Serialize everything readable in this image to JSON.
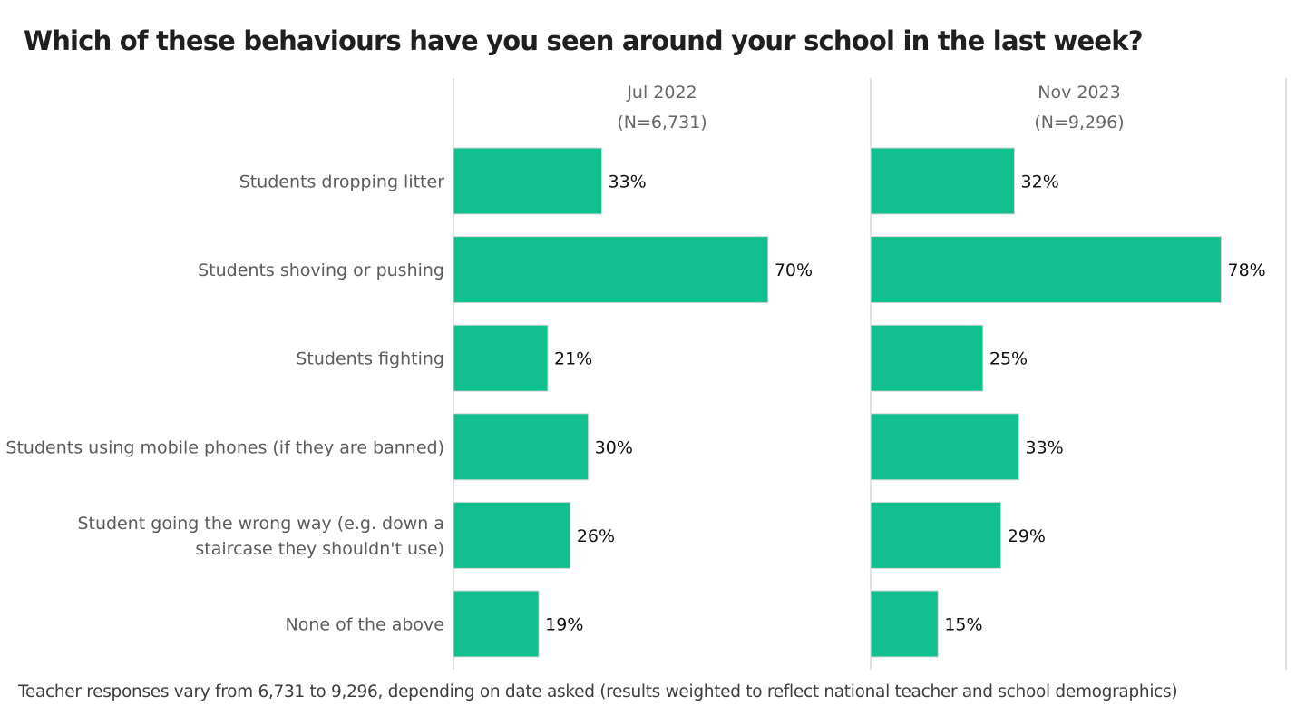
{
  "chart_data": {
    "type": "bar",
    "orientation": "horizontal",
    "title": "Which of these behaviours have you seen around your school in the last week?",
    "footnote": "Teacher responses vary from 6,731 to 9,296, depending on date asked (results weighted to reflect national teacher and school demographics)",
    "categories": [
      [
        "Students dropping litter"
      ],
      [
        "Students shoving or pushing"
      ],
      [
        "Students fighting"
      ],
      [
        "Students using mobile phones (if they are banned)"
      ],
      [
        "Student going the wrong way (e.g. down a",
        "staircase they shouldn't use)"
      ],
      [
        "None of the above"
      ]
    ],
    "series": [
      {
        "name": "Jul 2022",
        "sample": "(N=6,731)",
        "values": [
          33,
          70,
          21,
          30,
          26,
          19
        ],
        "labels": [
          "33%",
          "70%",
          "21%",
          "30%",
          "26%",
          "19%"
        ]
      },
      {
        "name": "Nov 2023",
        "sample": "(N=9,296)",
        "values": [
          32,
          78,
          25,
          33,
          29,
          15
        ],
        "labels": [
          "32%",
          "78%",
          "25%",
          "33%",
          "29%",
          "15%"
        ]
      }
    ],
    "value_unit": "%",
    "xlim": [
      0,
      100
    ],
    "grid": false,
    "legend": "none",
    "colors": {
      "bar": "#12bf8f",
      "bar_outline": "#d9d9d9",
      "panel_line": "#cccccc",
      "category_text": "#5b5b5b",
      "header_text": "#666666",
      "value_text": "#111111"
    }
  }
}
